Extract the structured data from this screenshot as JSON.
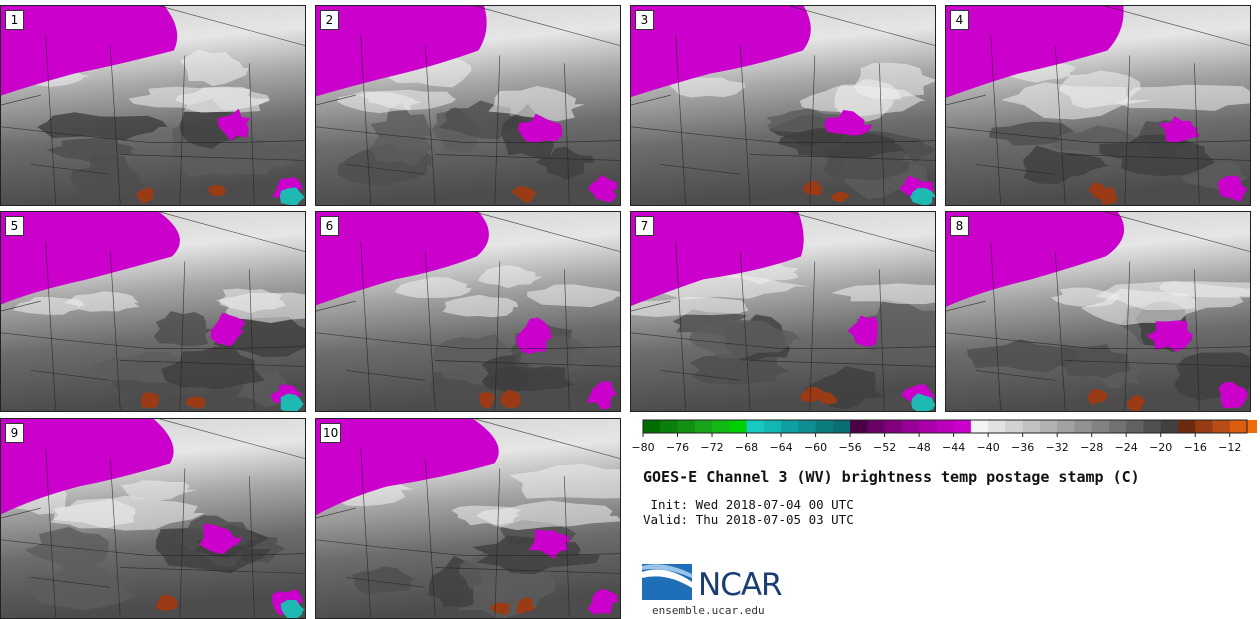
{
  "panels": [
    {
      "label": "1"
    },
    {
      "label": "2"
    },
    {
      "label": "3"
    },
    {
      "label": "4"
    },
    {
      "label": "5"
    },
    {
      "label": "6"
    },
    {
      "label": "7"
    },
    {
      "label": "8"
    },
    {
      "label": "9"
    },
    {
      "label": "10"
    }
  ],
  "colorbar": {
    "tick_labels": [
      "−80",
      "−76",
      "−72",
      "−68",
      "−64",
      "−60",
      "−56",
      "−52",
      "−48",
      "−44",
      "−40",
      "−36",
      "−32",
      "−28",
      "−24",
      "−20",
      "−16",
      "−12"
    ],
    "tick_values": [
      -80,
      -76,
      -72,
      -68,
      -64,
      -60,
      -56,
      -52,
      -48,
      -44,
      -40,
      -36,
      -32,
      -28,
      -24,
      -20,
      -16,
      -12
    ],
    "min": -80,
    "max": -10,
    "step": 2,
    "bins": [
      "#006d00",
      "#0b7f0b",
      "#129012",
      "#1aa41a",
      "#14b814",
      "#00d000",
      "#17c9c1",
      "#13b6b4",
      "#109fa0",
      "#0e8e90",
      "#0c7d7e",
      "#0a6d6f",
      "#4a0046",
      "#6a0066",
      "#82007e",
      "#970095",
      "#aa00aa",
      "#bb00bb",
      "#cc00cc",
      "#f4f4f4",
      "#e2e2e2",
      "#d2d2d2",
      "#c2c2c2",
      "#b2b2b2",
      "#a2a2a2",
      "#929292",
      "#828282",
      "#727272",
      "#626262",
      "#505050",
      "#404040",
      "#6e2a10",
      "#963c14",
      "#b84c16",
      "#dc5c10",
      "#f06a08"
    ]
  },
  "title": "GOES-E Channel 3 (WV) brightness temp postage stamp (C)",
  "init": " Init: Wed 2018-07-04 00 UTC",
  "valid": "Valid: Thu 2018-07-05 03 UTC",
  "logo": {
    "name": "NCAR",
    "url": "ensemble.ucar.edu"
  },
  "colors": {
    "moist_plume": "#cc00cc",
    "cold_anvil": "#1fb9b3",
    "warm_dry": "#9b3b16"
  }
}
